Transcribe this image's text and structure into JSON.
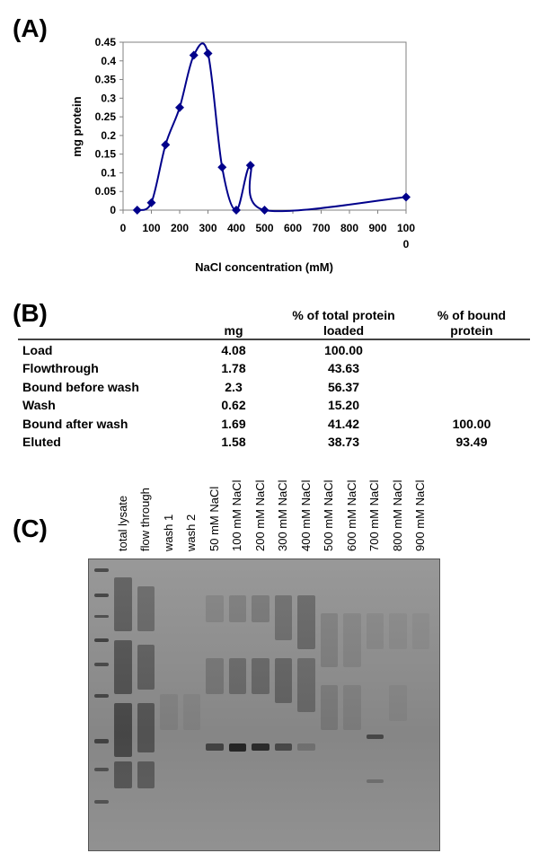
{
  "panels": {
    "a": "(A)",
    "b": "(B)",
    "c": "(C)"
  },
  "chart_data": {
    "type": "line",
    "title": "",
    "xlabel": "NaCl concentration (mM)",
    "ylabel": "mg protein",
    "xlim": [
      0,
      1000
    ],
    "ylim": [
      0,
      0.45
    ],
    "x_ticks": [
      "0",
      "100",
      "200",
      "300",
      "400",
      "500",
      "600",
      "700",
      "800",
      "900",
      "1000"
    ],
    "y_ticks": [
      "0",
      "0.05",
      "0.1",
      "0.15",
      "0.2",
      "0.25",
      "0.3",
      "0.35",
      "0.4",
      "0.45"
    ],
    "grid": false,
    "series": [
      {
        "color": "#00008b",
        "marker": "diamond",
        "x": [
          50,
          100,
          150,
          200,
          250,
          300,
          350,
          400,
          450,
          500,
          1000
        ],
        "y": [
          0,
          0.02,
          0.175,
          0.275,
          0.415,
          0.42,
          0.115,
          0,
          0.12,
          0,
          0.035
        ]
      }
    ]
  },
  "table": {
    "headers": {
      "mg": "mg",
      "pct_total": "% of total protein loaded",
      "pct_bound": "% of bound protein"
    },
    "rows": [
      {
        "label": "Load",
        "mg": "4.08",
        "pct_total": "100.00",
        "pct_bound": ""
      },
      {
        "label": "Flowthrough",
        "mg": "1.78",
        "pct_total": "43.63",
        "pct_bound": ""
      },
      {
        "label": "Bound before wash",
        "mg": "2.3",
        "pct_total": "56.37",
        "pct_bound": ""
      },
      {
        "label": "Wash",
        "mg": "0.62",
        "pct_total": "15.20",
        "pct_bound": ""
      },
      {
        "label": "Bound after wash",
        "mg": "1.69",
        "pct_total": "41.42",
        "pct_bound": "100.00"
      },
      {
        "label": "Eluted",
        "mg": "1.58",
        "pct_total": "38.73",
        "pct_bound": "93.49"
      }
    ]
  },
  "gel": {
    "lanes": [
      "total lysate",
      "flow through",
      "wash 1",
      "wash 2",
      "50 mM NaCl",
      "100 mM NaCl",
      "200 mM NaCl",
      "300 mM NaCl",
      "400 mM NaCl",
      "500 mM NaCl",
      "600 mM NaCl",
      "700 mM NaCl",
      "800 mM NaCl",
      "900 mM NaCl"
    ]
  }
}
